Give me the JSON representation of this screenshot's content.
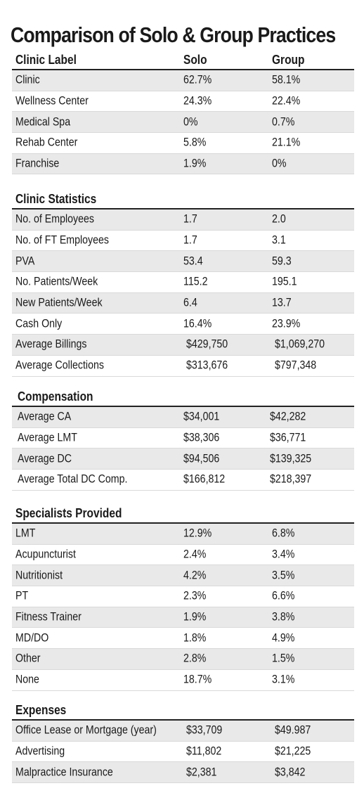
{
  "title": "Comparison of Solo & Group Practices",
  "sections": [
    {
      "heading": "Clinic Label",
      "col1": "Solo",
      "col2": "Group",
      "rows": [
        {
          "label": "Clinic",
          "solo": "62.7%",
          "group": "58.1%"
        },
        {
          "label": "Wellness Center",
          "solo": "24.3%",
          "group": "22.4%"
        },
        {
          "label": "Medical Spa",
          "solo": "0%",
          "group": "0.7%"
        },
        {
          "label": "Rehab Center",
          "solo": "5.8%",
          "group": "21.1%"
        },
        {
          "label": "Franchise",
          "solo": "1.9%",
          "group": "0%"
        }
      ]
    },
    {
      "heading": "Clinic Statistics",
      "rows": [
        {
          "label": "No. of Employees",
          "solo": "1.7",
          "group": "2.0"
        },
        {
          "label": "No. of FT Employees",
          "solo": "1.7",
          "group": "3.1"
        },
        {
          "label": "PVA",
          "solo": "53.4",
          "group": "59.3"
        },
        {
          "label": "No. Patients/Week",
          "solo": "115.2",
          "group": "195.1"
        },
        {
          "label": "New Patients/Week",
          "solo": "6.4",
          "group": "13.7"
        },
        {
          "label": "Cash Only",
          "solo": "16.4%",
          "group": "23.9%"
        },
        {
          "label": "Average Billings",
          "solo": "$429,750",
          "group": "$1,069,270"
        },
        {
          "label": "Average Collections",
          "solo": "$313,676",
          "group": "$797,348"
        }
      ]
    },
    {
      "heading": "Compensation",
      "rows": [
        {
          "label": "Average CA",
          "solo": "$34,001",
          "group": "$42,282"
        },
        {
          "label": "Average LMT",
          "solo": "$38,306",
          "group": "$36,771"
        },
        {
          "label": "Average DC",
          "solo": "$94,506",
          "group": "$139,325"
        },
        {
          "label": "Average Total DC Comp.",
          "solo": "$166,812",
          "group": "$218,397"
        }
      ]
    },
    {
      "heading": "Specialists Provided",
      "rows": [
        {
          "label": "LMT",
          "solo": "12.9%",
          "group": "6.8%"
        },
        {
          "label": "Acupuncturist",
          "solo": "2.4%",
          "group": "3.4%"
        },
        {
          "label": "Nutritionist",
          "solo": "4.2%",
          "group": "3.5%"
        },
        {
          "label": "PT",
          "solo": "2.3%",
          "group": "6.6%"
        },
        {
          "label": "Fitness Trainer",
          "solo": "1.9%",
          "group": "3.8%"
        },
        {
          "label": "MD/DO",
          "solo": "1.8%",
          "group": "4.9%"
        },
        {
          "label": "Other",
          "solo": "2.8%",
          "group": "1.5%"
        },
        {
          "label": "None",
          "solo": "18.7%",
          "group": "3.1%"
        }
      ]
    },
    {
      "heading": "Expenses",
      "rows": [
        {
          "label": "Office Lease or Mortgage (year)",
          "solo": "$33,709",
          "group": "$49.987"
        },
        {
          "label": "Advertising",
          "solo": "$11,802",
          "group": "$21,225"
        },
        {
          "label": "Malpractice Insurance",
          "solo": "$2,381",
          "group": "$3,842"
        }
      ]
    }
  ],
  "colors": {
    "shade": "#e9e9e9",
    "rule": "#222222",
    "text": "#1a1a1a"
  }
}
